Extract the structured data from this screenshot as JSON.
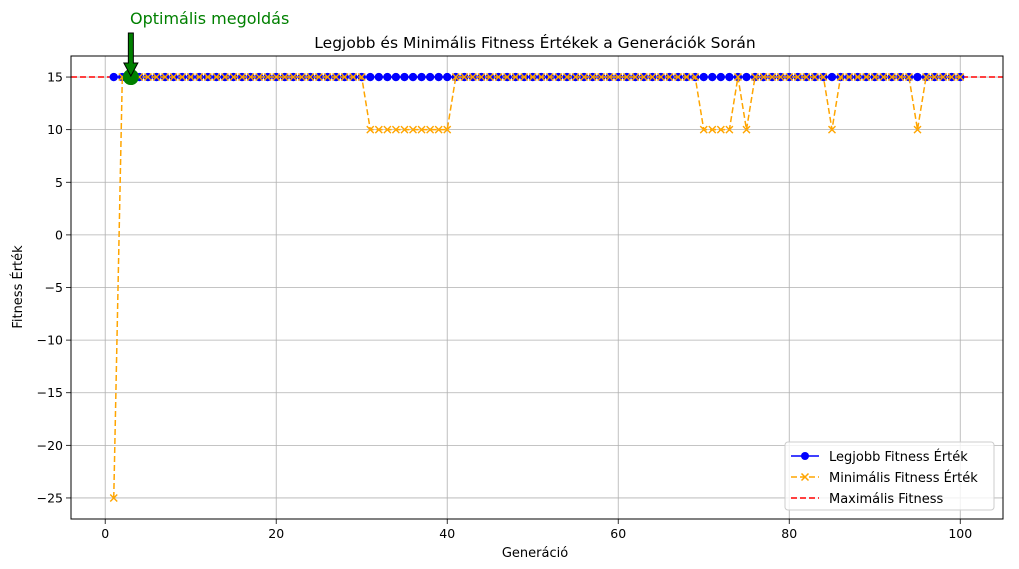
{
  "chart_data": {
    "type": "line",
    "title": "Legjobb és Minimális Fitness Értékek a Generációk Során",
    "xlabel": "Generáció",
    "ylabel": "Fitness Érték",
    "xlim": [
      -4,
      105
    ],
    "ylim": [
      -27,
      17
    ],
    "xticks": [
      0,
      20,
      40,
      60,
      80,
      100
    ],
    "yticks": [
      15,
      10,
      5,
      0,
      -5,
      -10,
      -15,
      -20,
      -25
    ],
    "ytick_labels": [
      "15",
      "10",
      "5",
      "0",
      "−5",
      "−10",
      "−15",
      "−20",
      "−25"
    ],
    "grid": true,
    "legend_position": "lower-right",
    "series": [
      {
        "name": "Legjobb Fitness Érték",
        "color": "#0000ff",
        "line": "solid",
        "marker": "circle",
        "x_range": [
          1,
          100
        ],
        "values_all": 15
      },
      {
        "name": "Minimális Fitness Érték",
        "color": "#ffa500",
        "line": "dashed",
        "marker": "x",
        "x_range": [
          1,
          100
        ],
        "default": 15,
        "overrides": [
          [
            1,
            -25
          ],
          [
            31,
            10
          ],
          [
            32,
            10
          ],
          [
            33,
            10
          ],
          [
            34,
            10
          ],
          [
            35,
            10
          ],
          [
            36,
            10
          ],
          [
            37,
            10
          ],
          [
            38,
            10
          ],
          [
            39,
            10
          ],
          [
            40,
            10
          ],
          [
            70,
            10
          ],
          [
            71,
            10
          ],
          [
            72,
            10
          ],
          [
            73,
            10
          ],
          [
            75,
            10
          ],
          [
            85,
            10
          ],
          [
            95,
            10
          ]
        ]
      }
    ],
    "hline": {
      "name": "Maximális Fitness",
      "y": 15,
      "color": "#ff0000",
      "line": "dashed"
    },
    "annotation": {
      "text": "Optimális megoldás",
      "x": 3,
      "y": 15,
      "color": "#008000"
    }
  }
}
